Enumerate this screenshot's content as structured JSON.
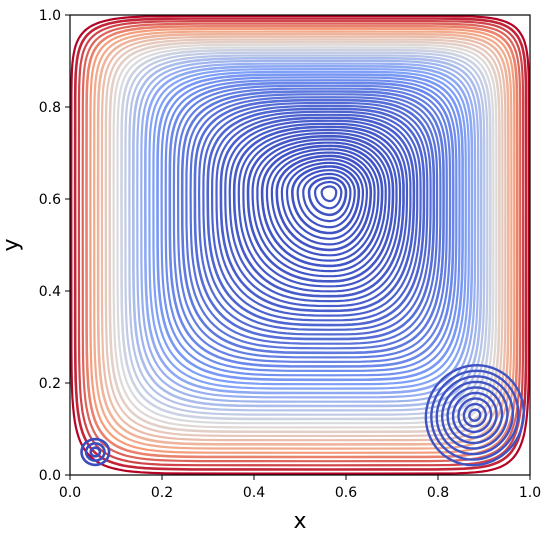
{
  "chart_data": {
    "type": "streamline",
    "title": "",
    "xlabel": "x",
    "ylabel": "y",
    "xlim": [
      0.0,
      1.0
    ],
    "ylim": [
      0.0,
      1.0
    ],
    "xticks": [
      "0.0",
      "0.2",
      "0.4",
      "0.6",
      "0.8",
      "1.0"
    ],
    "yticks": [
      "0.0",
      "0.2",
      "0.4",
      "0.6",
      "0.8",
      "1.0"
    ],
    "grid": false,
    "colormap": "coolwarm",
    "colors": {
      "low": "#3b4cc0",
      "mid": "#dddddd",
      "high": "#b40426"
    },
    "vortices": [
      {
        "name": "primary",
        "center": [
          0.565,
          0.615
        ]
      },
      {
        "name": "bottom-right secondary",
        "center": [
          0.88,
          0.13
        ]
      },
      {
        "name": "bottom-left secondary",
        "center": [
          0.055,
          0.05
        ]
      }
    ]
  }
}
